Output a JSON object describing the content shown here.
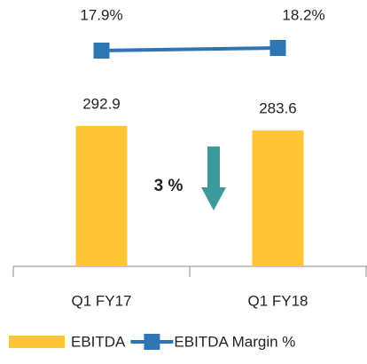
{
  "chart_data": {
    "type": "bar",
    "categories": [
      "Q1 FY17",
      "Q1 FY18"
    ],
    "series": [
      {
        "name": "EBITDA",
        "type": "bar",
        "color": "#FFC533",
        "values": [
          292.9,
          283.6
        ]
      },
      {
        "name": "EBITDA Margin %",
        "type": "line",
        "axis": "y2",
        "color": "#2E75B6",
        "values": [
          17.9,
          18.2
        ],
        "value_labels": [
          "17.9%",
          "18.2%"
        ]
      }
    ],
    "annotation": "3 %",
    "ylim": [
      0,
      550
    ],
    "y2lim": [
      -6.4,
      23.3
    ],
    "legend": "bottom"
  }
}
